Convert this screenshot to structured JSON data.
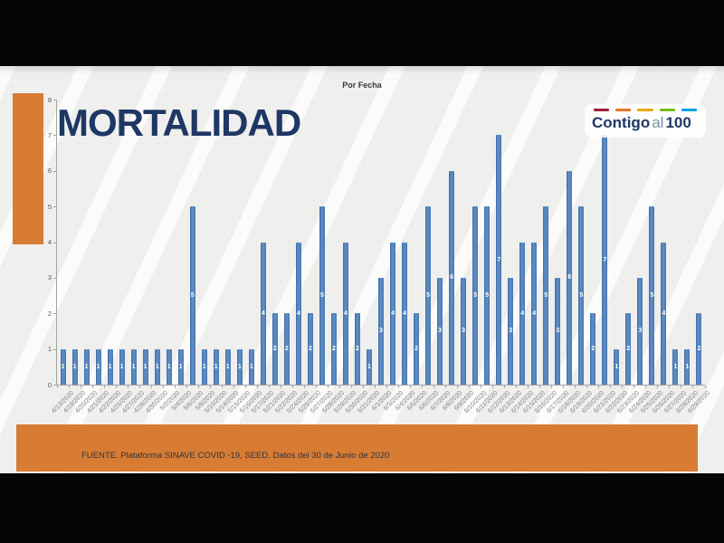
{
  "slide": {
    "headline": "MORTALIDAD",
    "source": "FUENTE. Plataforma SINAVE COVID -19, SEED. Datos del 30 de Junio de 2020",
    "logo": {
      "word1": "Contigo",
      "word2": "al",
      "word3": "100",
      "dash_colors": [
        "#9d2235",
        "#e87722",
        "#eaaa00",
        "#78be20",
        "#00a3e0"
      ]
    }
  },
  "colors": {
    "accent_orange": "#d87c33",
    "navy": "#1e3765",
    "bar_blue": "#4e80bc",
    "axis_gray": "#a3a3a3",
    "tick_label_gray": "#7f7f7f"
  },
  "chart_data": {
    "type": "bar",
    "title": "Por Fecha",
    "x": [
      "4/13/2020",
      "4/19/2020",
      "4/20/2020",
      "4/21/2020",
      "4/22/2020",
      "4/25/2020",
      "4/27/2020",
      "4/28/2020",
      "4/30/2020",
      "5/2/2020",
      "5/4/2020",
      "5/6/2020",
      "5/8/2020",
      "5/10/2020",
      "5/14/2020",
      "5/15/2020",
      "5/16/2020",
      "5/17/2020",
      "5/21/2020",
      "5/22/2020",
      "5/24/2020",
      "5/25/2020",
      "5/27/2020",
      "5/28/2020",
      "5/29/2020",
      "5/30/2020",
      "5/31/2020",
      "6/1/2020",
      "6/3/2020",
      "6/4/2020",
      "6/5/2020",
      "6/6/2020",
      "6/7/2020",
      "6/8/2020",
      "6/9/2020",
      "6/10/2020",
      "6/11/2020",
      "6/12/2020",
      "6/13/2020",
      "6/14/2020",
      "6/15/2020",
      "6/16/2020",
      "6/17/2020",
      "6/18/2020",
      "6/19/2020",
      "6/20/2020",
      "6/21/2020",
      "6/22/2020",
      "6/23/2020",
      "6/24/2020",
      "6/25/2020",
      "6/26/2020",
      "6/27/2020",
      "6/28/2020",
      "6/29/2020"
    ],
    "values": [
      1,
      1,
      1,
      1,
      1,
      1,
      1,
      1,
      1,
      1,
      1,
      5,
      1,
      1,
      1,
      1,
      1,
      4,
      2,
      2,
      4,
      2,
      5,
      2,
      4,
      2,
      1,
      3,
      4,
      4,
      2,
      5,
      3,
      6,
      3,
      5,
      5,
      7,
      3,
      4,
      4,
      5,
      3,
      6,
      5,
      2,
      7,
      1,
      2,
      3,
      5,
      4,
      1,
      1,
      2
    ],
    "ylim": [
      0,
      8
    ],
    "yticks": [
      0,
      1,
      2,
      3,
      4,
      5,
      6,
      7,
      8
    ],
    "xlabel": "",
    "ylabel": "",
    "grid": false,
    "legend": "none",
    "data_labels": "value shown in white, centered inside each bar"
  }
}
